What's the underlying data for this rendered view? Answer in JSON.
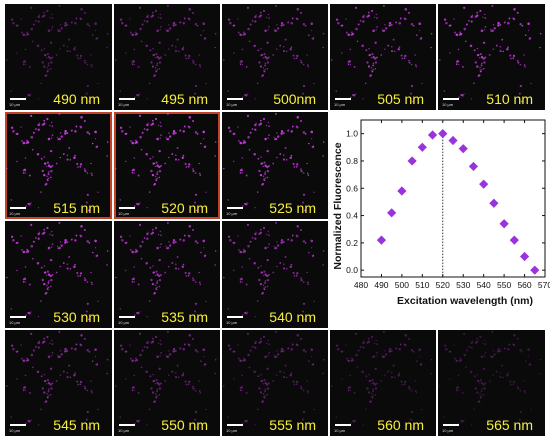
{
  "figure": {
    "panels": [
      {
        "label": "490 nm",
        "scale_label": "10 µm",
        "highlight": false
      },
      {
        "label": "495 nm",
        "scale_label": "10 µm",
        "highlight": false
      },
      {
        "label": "500nm",
        "scale_label": "10 µm",
        "highlight": false
      },
      {
        "label": "505 nm",
        "scale_label": "10 µm",
        "highlight": false
      },
      {
        "label": "510 nm",
        "scale_label": "10 µm",
        "highlight": false
      },
      {
        "label": "515 nm",
        "scale_label": "10 µm",
        "highlight": true
      },
      {
        "label": "520 nm",
        "scale_label": "10 µm",
        "highlight": true
      },
      {
        "label": "525 nm",
        "scale_label": "10 µm",
        "highlight": false
      },
      {
        "label": "530 nm",
        "scale_label": "10 µm",
        "highlight": false
      },
      {
        "label": "535 nm",
        "scale_label": "10 µm",
        "highlight": false
      },
      {
        "label": "540 nm",
        "scale_label": "10 µm",
        "highlight": false
      },
      {
        "label": "545 nm",
        "scale_label": "10 µm",
        "highlight": false
      },
      {
        "label": "550 nm",
        "scale_label": "10 µm",
        "highlight": false
      },
      {
        "label": "555 nm",
        "scale_label": "10 µm",
        "highlight": false
      },
      {
        "label": "560 nm",
        "scale_label": "10 µm",
        "highlight": false
      },
      {
        "label": "565 nm",
        "scale_label": "10 µm",
        "highlight": false
      }
    ],
    "label_color": "#f7ef3a",
    "highlight_color": "#c2432a",
    "signal_color": "#d43cf0"
  },
  "chart_data": {
    "type": "scatter",
    "title": "",
    "xlabel": "Excitation wavelength (nm)",
    "ylabel": "Normalized Fluorescence",
    "xlim": [
      480,
      570
    ],
    "ylim": [
      -0.05,
      1.1
    ],
    "xticks": [
      480,
      490,
      500,
      510,
      520,
      530,
      540,
      550,
      560,
      570
    ],
    "yticks": [
      0.0,
      0.2,
      0.4,
      0.6,
      0.8,
      1.0
    ],
    "xtick_labels": [
      "480",
      "490",
      "500",
      "510",
      "520",
      "530",
      "540",
      "550",
      "560",
      "570"
    ],
    "ytick_labels": [
      "0.0",
      "0.2",
      "0.4",
      "0.6",
      "0.8",
      "1.0"
    ],
    "marker": "diamond",
    "marker_color": "#9933dd",
    "reference_line_x": 520,
    "series": [
      {
        "x": [
          490,
          495,
          500,
          505,
          510,
          515,
          520,
          525,
          530,
          535,
          540,
          545,
          550,
          555,
          560,
          565
        ],
        "y": [
          0.22,
          0.42,
          0.58,
          0.8,
          0.9,
          0.99,
          1.0,
          0.95,
          0.89,
          0.76,
          0.63,
          0.49,
          0.34,
          0.22,
          0.1,
          0.0
        ]
      }
    ]
  }
}
